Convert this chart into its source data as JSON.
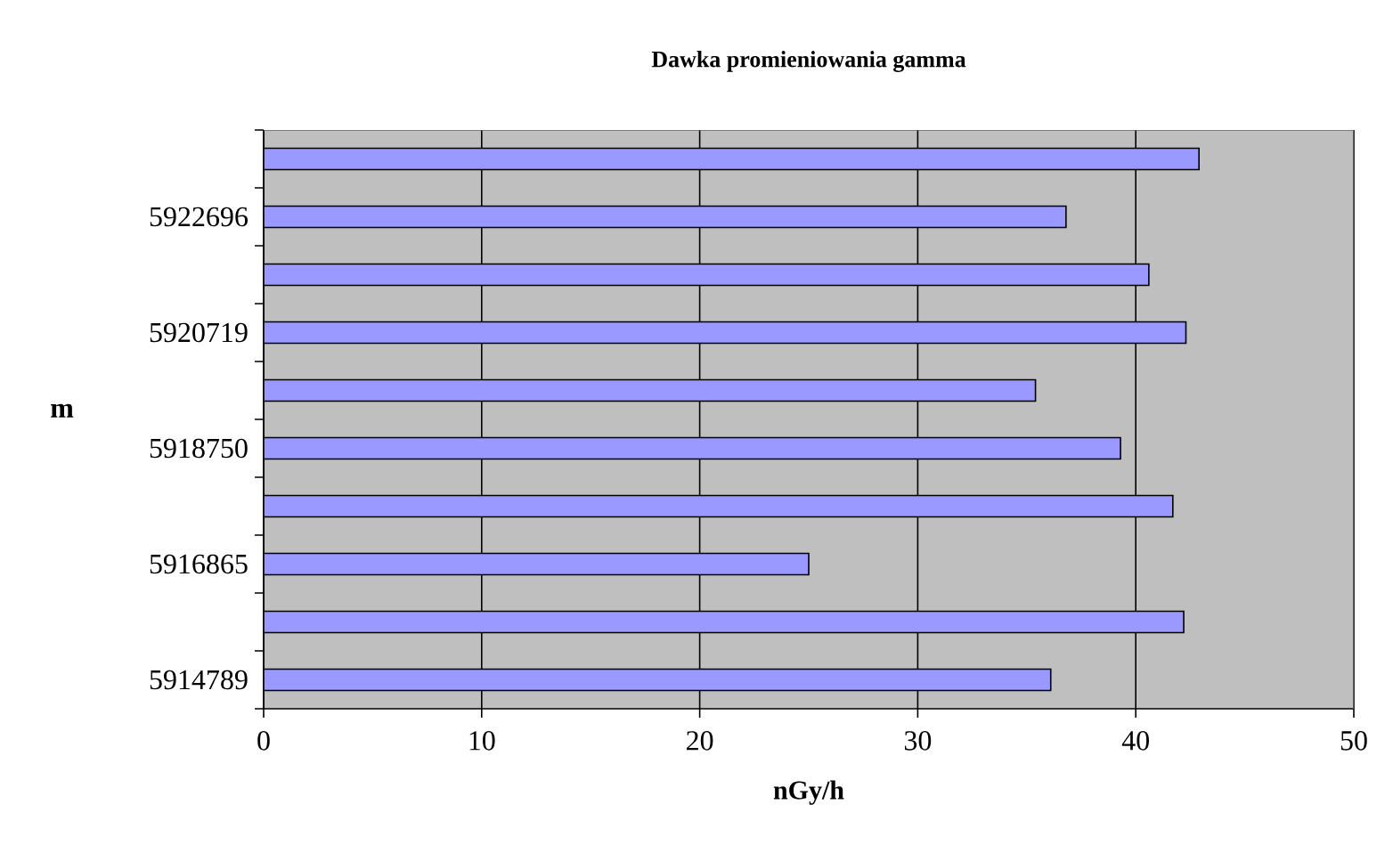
{
  "chart_data": {
    "type": "bar",
    "orientation": "horizontal",
    "title": "Dawka promieniowania gamma",
    "xlabel": "nGy/h",
    "ylabel": "m",
    "categories": [
      null,
      "5922696",
      null,
      "5920719",
      null,
      "5918750",
      null,
      "5916865",
      null,
      "5914789"
    ],
    "values": [
      42.9,
      36.8,
      40.6,
      42.3,
      35.4,
      39.3,
      41.7,
      25.0,
      42.2,
      36.1
    ],
    "color": "#9999ff",
    "xlim": [
      0,
      50
    ],
    "xticks": [
      0,
      10,
      20,
      30,
      40,
      50
    ],
    "grid": "x"
  }
}
